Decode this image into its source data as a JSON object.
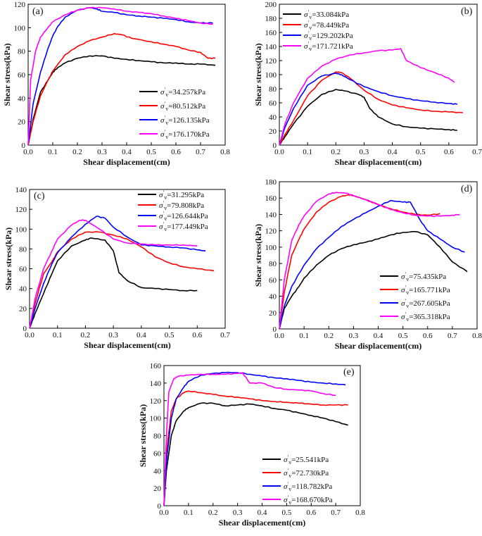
{
  "chart_data": [
    {
      "type": "line",
      "panel_label": "(a)",
      "xlabel": "Shear displacement(cm)",
      "ylabel": "Shear stress(kPa)",
      "xlim": [
        0,
        0.8
      ],
      "ylim": [
        0,
        120
      ],
      "xticks": [
        "0.0",
        "0.1",
        "0.2",
        "0.3",
        "0.4",
        "0.5",
        "0.6",
        "0.7",
        "0.8"
      ],
      "yticks": [
        "0",
        "20",
        "40",
        "60",
        "80",
        "100",
        "120"
      ],
      "legend_position": "bottom-right",
      "series": [
        {
          "name": "34.257kPa",
          "color": "#000000",
          "x": [
            0,
            0.02,
            0.05,
            0.08,
            0.1,
            0.12,
            0.15,
            0.2,
            0.25,
            0.3,
            0.35,
            0.4,
            0.45,
            0.5,
            0.55,
            0.6,
            0.65,
            0.7,
            0.76
          ],
          "y": [
            0,
            22,
            45,
            55,
            62,
            66,
            70,
            74,
            76,
            76,
            74,
            73,
            72,
            71,
            70,
            70,
            69,
            69,
            68
          ]
        },
        {
          "name": "80.512kPa",
          "color": "#ff0000",
          "x": [
            0,
            0.02,
            0.05,
            0.08,
            0.1,
            0.15,
            0.2,
            0.25,
            0.3,
            0.35,
            0.38,
            0.42,
            0.5,
            0.55,
            0.6,
            0.65,
            0.7,
            0.73,
            0.76
          ],
          "y": [
            0,
            20,
            42,
            55,
            63,
            77,
            84,
            89,
            92,
            95,
            94,
            91,
            88,
            86,
            84,
            81,
            79,
            74,
            74
          ]
        },
        {
          "name": "126.135kPa",
          "color": "#0000ff",
          "x": [
            0,
            0.02,
            0.05,
            0.08,
            0.1,
            0.12,
            0.15,
            0.2,
            0.25,
            0.28,
            0.3,
            0.35,
            0.4,
            0.45,
            0.5,
            0.55,
            0.6,
            0.65,
            0.7,
            0.75
          ],
          "y": [
            0,
            35,
            62,
            82,
            93,
            101,
            109,
            115,
            117,
            116,
            114,
            113,
            111,
            110,
            109,
            108,
            107,
            105,
            104,
            104
          ]
        },
        {
          "name": "176.170kPa",
          "color": "#ff00ff",
          "x": [
            0,
            0.01,
            0.03,
            0.05,
            0.08,
            0.1,
            0.15,
            0.2,
            0.25,
            0.3,
            0.35,
            0.4,
            0.45,
            0.5,
            0.55,
            0.6,
            0.65,
            0.7,
            0.75
          ],
          "y": [
            0,
            55,
            80,
            92,
            100,
            105,
            111,
            115,
            117,
            117,
            116,
            114,
            113,
            112,
            110,
            108,
            106,
            104,
            103
          ]
        }
      ]
    },
    {
      "type": "line",
      "panel_label": "(b)",
      "xlabel": "Shear displacement(cm)",
      "ylabel": "Shear stress(kPa)",
      "xlim": [
        0,
        0.7
      ],
      "ylim": [
        0,
        200
      ],
      "xticks": [
        "0.0",
        "0.1",
        "0.2",
        "0.3",
        "0.4",
        "0.5",
        "0.6",
        "0.7"
      ],
      "yticks": [
        "0",
        "20",
        "40",
        "60",
        "80",
        "100",
        "120",
        "140",
        "160",
        "180",
        "200"
      ],
      "legend_position": "top-left",
      "series": [
        {
          "name": "33.084kPa",
          "color": "#000000",
          "x": [
            0,
            0.02,
            0.05,
            0.1,
            0.15,
            0.2,
            0.23,
            0.28,
            0.3,
            0.32,
            0.35,
            0.4,
            0.45,
            0.5,
            0.55,
            0.6,
            0.63
          ],
          "y": [
            0,
            12,
            30,
            55,
            72,
            79,
            77,
            72,
            68,
            52,
            40,
            30,
            26,
            24,
            23,
            22,
            21
          ]
        },
        {
          "name": "78.449kPa",
          "color": "#ff0000",
          "x": [
            0,
            0.02,
            0.05,
            0.1,
            0.15,
            0.2,
            0.22,
            0.25,
            0.3,
            0.35,
            0.4,
            0.45,
            0.5,
            0.55,
            0.6,
            0.65
          ],
          "y": [
            0,
            15,
            35,
            70,
            92,
            104,
            103,
            95,
            78,
            65,
            57,
            53,
            50,
            48,
            47,
            46
          ]
        },
        {
          "name": "129.202kPa",
          "color": "#0000ff",
          "x": [
            0,
            0.02,
            0.05,
            0.1,
            0.15,
            0.2,
            0.22,
            0.25,
            0.3,
            0.35,
            0.4,
            0.45,
            0.5,
            0.55,
            0.6,
            0.63
          ],
          "y": [
            0,
            25,
            52,
            85,
            98,
            102,
            100,
            93,
            83,
            76,
            70,
            66,
            63,
            61,
            59,
            58
          ]
        },
        {
          "name": "171.721kPa",
          "color": "#ff00ff",
          "x": [
            0,
            0.02,
            0.05,
            0.1,
            0.15,
            0.2,
            0.25,
            0.3,
            0.35,
            0.4,
            0.43,
            0.45,
            0.5,
            0.55,
            0.6,
            0.62
          ],
          "y": [
            0,
            30,
            60,
            95,
            112,
            122,
            128,
            131,
            134,
            135,
            137,
            120,
            110,
            103,
            95,
            89
          ]
        }
      ]
    },
    {
      "type": "line",
      "panel_label": "(c)",
      "xlabel": "Shear displacement(cm)",
      "ylabel": "Shear stress(kPa)",
      "xlim": [
        0,
        0.7
      ],
      "ylim": [
        0,
        140
      ],
      "xticks": [
        "0.0",
        "0.1",
        "0.2",
        "0.3",
        "0.4",
        "0.5",
        "0.6",
        "0.7"
      ],
      "yticks": [
        "0",
        "20",
        "40",
        "60",
        "80",
        "100",
        "120",
        "140"
      ],
      "legend_position": "top-right",
      "series": [
        {
          "name": "31.295kPa",
          "color": "#000000",
          "x": [
            0,
            0.02,
            0.05,
            0.08,
            0.1,
            0.15,
            0.2,
            0.22,
            0.27,
            0.3,
            0.32,
            0.35,
            0.4,
            0.45,
            0.5,
            0.55,
            0.6
          ],
          "y": [
            0,
            15,
            35,
            55,
            68,
            83,
            89,
            91,
            89,
            78,
            56,
            48,
            41,
            40,
            39,
            38,
            38
          ]
        },
        {
          "name": "79.808kPa",
          "color": "#ff0000",
          "x": [
            0,
            0.02,
            0.05,
            0.08,
            0.1,
            0.15,
            0.2,
            0.25,
            0.3,
            0.35,
            0.4,
            0.45,
            0.5,
            0.55,
            0.6,
            0.66
          ],
          "y": [
            0,
            25,
            55,
            67,
            77,
            90,
            97,
            97,
            94,
            90,
            82,
            72,
            66,
            62,
            60,
            58
          ]
        },
        {
          "name": "126.644kPa",
          "color": "#0000ff",
          "x": [
            0,
            0.02,
            0.05,
            0.08,
            0.1,
            0.15,
            0.2,
            0.24,
            0.27,
            0.3,
            0.35,
            0.4,
            0.45,
            0.5,
            0.55,
            0.6,
            0.63
          ],
          "y": [
            0,
            20,
            45,
            65,
            76,
            92,
            105,
            113,
            111,
            102,
            92,
            84,
            83,
            82,
            81,
            79,
            78
          ]
        },
        {
          "name": "177.449kPa",
          "color": "#ff00ff",
          "x": [
            0,
            0.02,
            0.05,
            0.08,
            0.1,
            0.15,
            0.18,
            0.2,
            0.25,
            0.3,
            0.35,
            0.4,
            0.45,
            0.5,
            0.55,
            0.6
          ],
          "y": [
            0,
            30,
            60,
            78,
            90,
            104,
            109,
            109,
            100,
            90,
            86,
            85,
            84,
            84,
            84,
            83
          ]
        }
      ]
    },
    {
      "type": "line",
      "panel_label": "(d)",
      "xlabel": "Shear displacement(cm)",
      "ylabel": "Shear stress(kPa)",
      "xlim": [
        0,
        0.8
      ],
      "ylim": [
        0,
        180
      ],
      "xticks": [
        "0.0",
        "0.1",
        "0.2",
        "0.3",
        "0.4",
        "0.5",
        "0.6",
        "0.7",
        "0.8"
      ],
      "yticks": [
        "0",
        "20",
        "40",
        "60",
        "80",
        "100",
        "120",
        "140",
        "160",
        "180"
      ],
      "legend_position": "bottom-right",
      "series": [
        {
          "name": "75.435kPa",
          "color": "#000000",
          "x": [
            0,
            0.02,
            0.05,
            0.08,
            0.1,
            0.15,
            0.2,
            0.25,
            0.3,
            0.35,
            0.4,
            0.45,
            0.5,
            0.55,
            0.6,
            0.65,
            0.7,
            0.76
          ],
          "y": [
            0,
            25,
            40,
            52,
            62,
            78,
            90,
            98,
            103,
            106,
            110,
            115,
            118,
            119,
            115,
            100,
            82,
            70
          ]
        },
        {
          "name": "165.771kPa",
          "color": "#ff0000",
          "x": [
            0,
            0.02,
            0.05,
            0.08,
            0.1,
            0.15,
            0.2,
            0.25,
            0.28,
            0.3,
            0.35,
            0.4,
            0.45,
            0.5,
            0.55,
            0.6,
            0.65
          ],
          "y": [
            0,
            45,
            90,
            110,
            122,
            143,
            155,
            162,
            164,
            163,
            158,
            152,
            147,
            143,
            140,
            139,
            141
          ]
        },
        {
          "name": "267.605kPa",
          "color": "#0000ff",
          "x": [
            0,
            0.02,
            0.05,
            0.1,
            0.15,
            0.2,
            0.25,
            0.3,
            0.35,
            0.4,
            0.45,
            0.5,
            0.53,
            0.57,
            0.6,
            0.65,
            0.7,
            0.75
          ],
          "y": [
            0,
            28,
            52,
            78,
            98,
            112,
            125,
            134,
            142,
            150,
            157,
            155,
            155,
            133,
            120,
            110,
            100,
            94
          ]
        },
        {
          "name": "365.318kPa",
          "color": "#ff00ff",
          "x": [
            0,
            0.02,
            0.05,
            0.08,
            0.1,
            0.15,
            0.2,
            0.23,
            0.27,
            0.3,
            0.35,
            0.4,
            0.45,
            0.5,
            0.55,
            0.6,
            0.65,
            0.7,
            0.73
          ],
          "y": [
            0,
            60,
            108,
            128,
            138,
            156,
            165,
            167,
            166,
            163,
            158,
            152,
            146,
            142,
            139,
            138,
            138,
            139,
            140
          ]
        }
      ]
    },
    {
      "type": "line",
      "panel_label": "(e)",
      "xlabel": "Shear displacement(cm)",
      "ylabel": "Shear stress(kPa)",
      "xlim": [
        0,
        0.8
      ],
      "ylim": [
        0,
        160
      ],
      "xticks": [
        "0.0",
        "0.1",
        "0.2",
        "0.3",
        "0.4",
        "0.5",
        "0.6",
        "0.7",
        "0.8"
      ],
      "yticks": [
        "0",
        "20",
        "40",
        "60",
        "80",
        "100",
        "120",
        "140",
        "160"
      ],
      "legend_position": "bottom-right",
      "series": [
        {
          "name": "25.541kPa",
          "color": "#000000",
          "x": [
            0,
            0.01,
            0.03,
            0.05,
            0.08,
            0.1,
            0.15,
            0.2,
            0.25,
            0.3,
            0.35,
            0.4,
            0.45,
            0.5,
            0.55,
            0.6,
            0.65,
            0.7,
            0.75
          ],
          "y": [
            0,
            40,
            80,
            97,
            108,
            112,
            117,
            117,
            114,
            115,
            116,
            114,
            111,
            109,
            106,
            103,
            100,
            96,
            92
          ]
        },
        {
          "name": "72.730kPa",
          "color": "#ff0000",
          "x": [
            0,
            0.01,
            0.03,
            0.05,
            0.08,
            0.1,
            0.15,
            0.2,
            0.25,
            0.3,
            0.35,
            0.4,
            0.45,
            0.5,
            0.55,
            0.6,
            0.65,
            0.7,
            0.75
          ],
          "y": [
            0,
            60,
            108,
            122,
            129,
            131,
            129,
            127,
            125,
            124,
            122,
            120,
            119,
            118,
            117,
            116,
            115,
            115,
            115
          ]
        },
        {
          "name": "118.782kPa",
          "color": "#0000ff",
          "x": [
            0,
            0.01,
            0.03,
            0.05,
            0.08,
            0.1,
            0.15,
            0.2,
            0.25,
            0.3,
            0.35,
            0.4,
            0.45,
            0.5,
            0.55,
            0.6,
            0.65,
            0.7,
            0.74
          ],
          "y": [
            0,
            50,
            100,
            122,
            135,
            142,
            149,
            151,
            152,
            152,
            150,
            148,
            146,
            145,
            143,
            141,
            140,
            139,
            138
          ]
        },
        {
          "name": "168.670kPa",
          "color": "#ff00ff",
          "x": [
            0,
            0.01,
            0.02,
            0.04,
            0.06,
            0.1,
            0.15,
            0.2,
            0.25,
            0.3,
            0.32,
            0.35,
            0.4,
            0.45,
            0.5,
            0.55,
            0.6,
            0.65,
            0.7
          ],
          "y": [
            0,
            80,
            130,
            145,
            148,
            149,
            150,
            150,
            150,
            151,
            152,
            140,
            140,
            135,
            133,
            132,
            131,
            128,
            126
          ]
        }
      ]
    }
  ]
}
